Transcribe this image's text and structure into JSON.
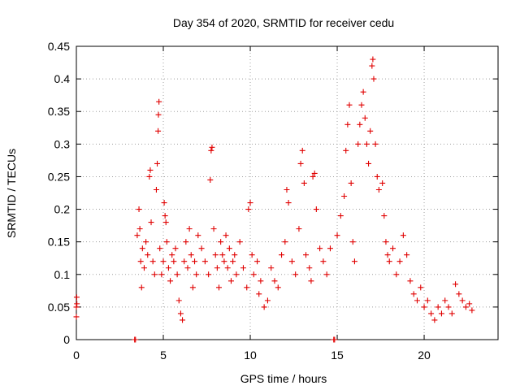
{
  "chart_data": {
    "type": "scatter",
    "title": "Day 354 of 2020, SRMTID for receiver cedu",
    "xlabel": "GPS time / hours",
    "ylabel": "SRMTID / TECUs",
    "xlim": [
      0,
      24.25
    ],
    "ylim": [
      0,
      0.45
    ],
    "x_ticks": [
      0,
      5,
      10,
      15,
      20
    ],
    "x_tick_labels": [
      "0",
      "5",
      "10",
      "15",
      "20"
    ],
    "y_ticks": [
      0,
      0.05,
      0.1,
      0.15,
      0.2,
      0.25,
      0.3,
      0.35,
      0.4,
      0.45
    ],
    "y_tick_labels": [
      "0",
      "0.05",
      "0.1",
      "0.15",
      "0.2",
      "0.25",
      "0.3",
      "0.35",
      "0.4",
      "0.45"
    ],
    "grid": true,
    "marker": "plus",
    "color": "#e00000",
    "series": [
      {
        "name": "SRMTID",
        "points": [
          [
            0.0,
            0.035
          ],
          [
            0.0,
            0.05
          ],
          [
            0.02,
            0.065
          ],
          [
            0.03,
            0.055
          ],
          [
            3.35,
            0.0
          ],
          [
            3.4,
            0.0
          ],
          [
            3.5,
            0.16
          ],
          [
            3.6,
            0.2
          ],
          [
            3.65,
            0.17
          ],
          [
            3.7,
            0.12
          ],
          [
            3.75,
            0.08
          ],
          [
            3.8,
            0.14
          ],
          [
            3.9,
            0.11
          ],
          [
            4.0,
            0.15
          ],
          [
            4.1,
            0.13
          ],
          [
            4.2,
            0.25
          ],
          [
            4.25,
            0.26
          ],
          [
            4.3,
            0.18
          ],
          [
            4.4,
            0.12
          ],
          [
            4.5,
            0.1
          ],
          [
            4.6,
            0.23
          ],
          [
            4.65,
            0.27
          ],
          [
            4.7,
            0.32
          ],
          [
            4.72,
            0.345
          ],
          [
            4.75,
            0.365
          ],
          [
            4.8,
            0.14
          ],
          [
            4.9,
            0.1
          ],
          [
            5.0,
            0.12
          ],
          [
            5.05,
            0.21
          ],
          [
            5.1,
            0.19
          ],
          [
            5.15,
            0.18
          ],
          [
            5.2,
            0.15
          ],
          [
            5.3,
            0.11
          ],
          [
            5.4,
            0.09
          ],
          [
            5.5,
            0.13
          ],
          [
            5.6,
            0.12
          ],
          [
            5.7,
            0.14
          ],
          [
            5.8,
            0.1
          ],
          [
            5.9,
            0.06
          ],
          [
            6.0,
            0.04
          ],
          [
            6.1,
            0.03
          ],
          [
            6.2,
            0.12
          ],
          [
            6.3,
            0.15
          ],
          [
            6.4,
            0.11
          ],
          [
            6.5,
            0.17
          ],
          [
            6.6,
            0.13
          ],
          [
            6.7,
            0.08
          ],
          [
            6.8,
            0.12
          ],
          [
            6.9,
            0.1
          ],
          [
            7.0,
            0.16
          ],
          [
            7.2,
            0.14
          ],
          [
            7.4,
            0.12
          ],
          [
            7.6,
            0.1
          ],
          [
            7.7,
            0.245
          ],
          [
            7.75,
            0.29
          ],
          [
            7.8,
            0.295
          ],
          [
            7.9,
            0.17
          ],
          [
            8.0,
            0.13
          ],
          [
            8.1,
            0.11
          ],
          [
            8.2,
            0.08
          ],
          [
            8.3,
            0.15
          ],
          [
            8.4,
            0.13
          ],
          [
            8.5,
            0.12
          ],
          [
            8.6,
            0.16
          ],
          [
            8.7,
            0.11
          ],
          [
            8.8,
            0.14
          ],
          [
            8.9,
            0.09
          ],
          [
            9.0,
            0.12
          ],
          [
            9.1,
            0.13
          ],
          [
            9.2,
            0.1
          ],
          [
            9.4,
            0.15
          ],
          [
            9.6,
            0.11
          ],
          [
            9.8,
            0.08
          ],
          [
            9.9,
            0.2
          ],
          [
            10.0,
            0.21
          ],
          [
            10.1,
            0.13
          ],
          [
            10.2,
            0.1
          ],
          [
            10.4,
            0.12
          ],
          [
            10.5,
            0.07
          ],
          [
            10.6,
            0.09
          ],
          [
            10.8,
            0.05
          ],
          [
            11.0,
            0.06
          ],
          [
            11.2,
            0.11
          ],
          [
            11.4,
            0.09
          ],
          [
            11.6,
            0.08
          ],
          [
            11.8,
            0.13
          ],
          [
            12.0,
            0.15
          ],
          [
            12.1,
            0.23
          ],
          [
            12.2,
            0.21
          ],
          [
            12.4,
            0.12
          ],
          [
            12.6,
            0.1
          ],
          [
            12.8,
            0.17
          ],
          [
            12.9,
            0.27
          ],
          [
            13.0,
            0.29
          ],
          [
            13.1,
            0.24
          ],
          [
            13.2,
            0.13
          ],
          [
            13.4,
            0.11
          ],
          [
            13.5,
            0.09
          ],
          [
            13.6,
            0.25
          ],
          [
            13.7,
            0.255
          ],
          [
            13.8,
            0.2
          ],
          [
            14.0,
            0.14
          ],
          [
            14.2,
            0.12
          ],
          [
            14.4,
            0.1
          ],
          [
            14.6,
            0.14
          ],
          [
            14.8,
            0.0
          ],
          [
            14.85,
            0.0
          ],
          [
            15.0,
            0.16
          ],
          [
            15.2,
            0.19
          ],
          [
            15.4,
            0.22
          ],
          [
            15.5,
            0.29
          ],
          [
            15.6,
            0.33
          ],
          [
            15.7,
            0.36
          ],
          [
            15.8,
            0.24
          ],
          [
            15.9,
            0.15
          ],
          [
            16.0,
            0.12
          ],
          [
            16.2,
            0.3
          ],
          [
            16.3,
            0.33
          ],
          [
            16.4,
            0.36
          ],
          [
            16.5,
            0.38
          ],
          [
            16.6,
            0.34
          ],
          [
            16.7,
            0.3
          ],
          [
            16.8,
            0.27
          ],
          [
            16.9,
            0.32
          ],
          [
            17.0,
            0.42
          ],
          [
            17.05,
            0.43
          ],
          [
            17.1,
            0.4
          ],
          [
            17.2,
            0.3
          ],
          [
            17.3,
            0.25
          ],
          [
            17.4,
            0.23
          ],
          [
            17.6,
            0.24
          ],
          [
            17.7,
            0.19
          ],
          [
            17.8,
            0.15
          ],
          [
            17.9,
            0.13
          ],
          [
            18.0,
            0.12
          ],
          [
            18.2,
            0.14
          ],
          [
            18.4,
            0.1
          ],
          [
            18.6,
            0.12
          ],
          [
            18.8,
            0.16
          ],
          [
            19.0,
            0.13
          ],
          [
            19.2,
            0.09
          ],
          [
            19.4,
            0.07
          ],
          [
            19.6,
            0.06
          ],
          [
            19.8,
            0.08
          ],
          [
            20.0,
            0.05
          ],
          [
            20.2,
            0.06
          ],
          [
            20.4,
            0.04
          ],
          [
            20.6,
            0.03
          ],
          [
            20.8,
            0.05
          ],
          [
            21.0,
            0.04
          ],
          [
            21.2,
            0.06
          ],
          [
            21.4,
            0.05
          ],
          [
            21.6,
            0.04
          ],
          [
            21.8,
            0.085
          ],
          [
            22.0,
            0.07
          ],
          [
            22.2,
            0.06
          ],
          [
            22.4,
            0.05
          ],
          [
            22.6,
            0.055
          ],
          [
            22.75,
            0.045
          ]
        ]
      }
    ]
  }
}
